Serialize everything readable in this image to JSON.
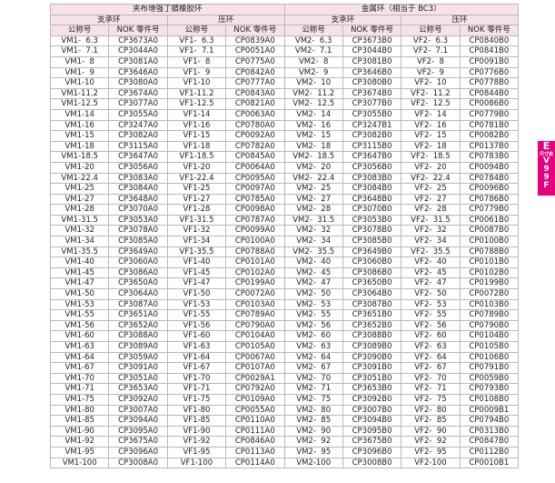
{
  "table": {
    "groups": [
      "夹布增强丁腈橡胶环",
      "金属环（相当于 BC3）"
    ],
    "subgroups": [
      "支承环",
      "压环",
      "支承环",
      "压环"
    ],
    "columns": [
      "公称号",
      "NOK 零件号",
      "公称号",
      "NOK 零件号",
      "公称号",
      "NOK 零件号",
      "公称号",
      "NOK 零件号"
    ],
    "rows": [
      [
        "VM1-  6.3",
        "CP3673A0",
        "VF1-  6.3",
        "CP0839A0",
        "VM2-  6.3",
        "CP3673B0",
        "VF2-  6.3",
        "CP0840B0"
      ],
      [
        "VM1-  7.1",
        "CP3044A0",
        "VF1-  7.1",
        "CP0051A0",
        "VM2-  7.1",
        "CP3044B0",
        "VF2-  7.1",
        "CP0841B0"
      ],
      [
        "VM1-  8",
        "CP3081A0",
        "VF1-  8",
        "CP0775A0",
        "VM2-  8",
        "CP3081B0",
        "VF2-  8",
        "CP0091B0"
      ],
      [
        "VM1-  9",
        "CP3646A0",
        "VF1-  9",
        "CP0842A0",
        "VM2-  9",
        "CP3646B0",
        "VF2-  9",
        "CP0776B0"
      ],
      [
        "VM1-10",
        "CP3080A0",
        "VF1-10",
        "CP0777A0",
        "VM2-  10",
        "CP3080B0",
        "VF2-  10",
        "CP0778B0"
      ],
      [
        "VM1-11.2",
        "CP3674A0",
        "VF1-11.2",
        "CP0843A0",
        "VM2-  11.2",
        "CP3674B0",
        "VF2-  11.2",
        "CP0844B0"
      ],
      [
        "VM1-12.5",
        "CP3077A0",
        "VF1-12.5",
        "CP0821A0",
        "VM2-  12.5",
        "CP3077B0",
        "VF2-  12.5",
        "CP0086B0"
      ],
      [
        "VM1-14",
        "CP3055A0",
        "VF1-14",
        "CP0063A0",
        "VM2-  14",
        "CP3055B0",
        "VF2-  14",
        "CP0779B0"
      ],
      [
        "VM1-16",
        "CP3247A0",
        "VF1-16",
        "CP0780A0",
        "VM2-  16",
        "CP3247B1",
        "VF2-  16",
        "CP0781B0"
      ],
      [
        "VM1-15",
        "CP3082A0",
        "VF1-15",
        "CP0092A0",
        "VM2-  15",
        "CP3082B0",
        "VF2-  15",
        "CP0082B0"
      ],
      [
        "VM1-18",
        "CP3115A0",
        "VF1-18",
        "CP0782A0",
        "VM2-  18",
        "CP3115B0",
        "VF2-  18",
        "CP0137B0"
      ],
      [
        "VM1-18.5",
        "CP3647A0",
        "VF1-18.5",
        "CP0845A0",
        "VM2-  18.5",
        "CP3647B0",
        "VF2-  18.5",
        "CP0783B0"
      ],
      [
        "VM1-20",
        "CP3056A0",
        "VF1-20",
        "CP0064A0",
        "VM2-  20",
        "CP3056B0",
        "VF2-  20",
        "CP0094B0"
      ],
      [
        "VM1-22.4",
        "CP3083A0",
        "VF1-22.4",
        "CP0095A0",
        "VM2-  22.4",
        "CP3083B0",
        "VF2-  22.4",
        "CP0784B0"
      ],
      [
        "VM1-25",
        "CP3084A0",
        "VF1-25",
        "CP0097A0",
        "VM2-  25",
        "CP3084B0",
        "VF2-  25",
        "CP0096B0"
      ],
      [
        "VM1-27",
        "CP3648A0",
        "VF1-27",
        "CP0785A0",
        "VM2-  27",
        "CP3648B0",
        "VF2-  27",
        "CP0786B0"
      ],
      [
        "VM1-28",
        "CP3070A0",
        "VF1-28",
        "CP0098A0",
        "VM2-  28",
        "CP3070B0",
        "VF2-  28",
        "CP0779B0"
      ],
      [
        "VM1-31.5",
        "CP3053A0",
        "VF1-31.5",
        "CP0787A0",
        "VM2-  31.5",
        "CP3053B0",
        "VF2-  31.5",
        "CP0061B0"
      ],
      [
        "VM1-32",
        "CP3078A0",
        "VF1-32",
        "CP0099A0",
        "VM2-  32",
        "CP3078B0",
        "VF2-  32",
        "CP0087B0"
      ],
      [
        "VM1-34",
        "CP3085A0",
        "VF1-34",
        "CP0100A0",
        "VM2-  34",
        "CP3085B0",
        "VF2-  34",
        "CP0100B0"
      ],
      [
        "VM1-35.5",
        "CP3649A0",
        "VF1-35.5",
        "CP0788A0",
        "VM2-  35.5",
        "CP3649B0",
        "VF2-  35.5",
        "CP0788B0"
      ],
      [
        "VM1-40",
        "CP3060A0",
        "VF1-40",
        "CP0101A0",
        "VM2-  40",
        "CP3060B0",
        "VF2-  40",
        "CP0101B0"
      ],
      [
        "VM1-45",
        "CP3086A0",
        "VF1-45",
        "CP0102A0",
        "VM2-  45",
        "CP3086B0",
        "VF2-  45",
        "CP0102B0"
      ],
      [
        "VM1-47",
        "CP3650A0",
        "VF1-47",
        "CP0199A0",
        "VM2-  47",
        "CP3650B0",
        "VF2-  47",
        "CP0199B0"
      ],
      [
        "VM1-50",
        "CP3064A0",
        "VF1-50",
        "CP0072A0",
        "VM2-  50",
        "CP3064B0",
        "VF2-  50",
        "CP0072B0"
      ],
      [
        "VM1-53",
        "CP3087A0",
        "VF1-53",
        "CP0103A0",
        "VM2-  53",
        "CP3087B0",
        "VF2-  53",
        "CP0103B0"
      ],
      [
        "VM1-55",
        "CP3651A0",
        "VF1-55",
        "CP0789A0",
        "VM2-  55",
        "CP3651B0",
        "VF2-  55",
        "CP0789B0"
      ],
      [
        "VM1-56",
        "CP3652A0",
        "VF1-56",
        "CP0790A0",
        "VM2-  56",
        "CP3652B0",
        "VF2-  56",
        "CP0790B0"
      ],
      [
        "VM1-60",
        "CP3088A0",
        "VF1-60",
        "CP0104A0",
        "VM2-  60",
        "CP3088B0",
        "VF2-  60",
        "CP0104B0"
      ],
      [
        "VM1-63",
        "CP3089A0",
        "VF1-63",
        "CP0105A0",
        "VM2-  63",
        "CP3089B0",
        "VF2-  63",
        "CP0105B0"
      ],
      [
        "VM1-64",
        "CP3059A0",
        "VF1-64",
        "CP0067A0",
        "VM2-  64",
        "CP3090B0",
        "VF2-  64",
        "CP0106B0"
      ],
      [
        "VM1-67",
        "CP3091A0",
        "VF1-67",
        "CP0107A0",
        "VM2-  67",
        "CP3091B0",
        "VF2-  67",
        "CP0791B0"
      ],
      [
        "VM1-70",
        "CP3051A0",
        "VF1-70",
        "CP0029A1",
        "VM2-  70",
        "CP3051B0",
        "VF2-  70",
        "CP0059B0"
      ],
      [
        "VM1-71",
        "CP3653A0",
        "VF1-71",
        "CP0792A0",
        "VM2-  71",
        "CP3653B0",
        "VF2-  71",
        "CP0793B0"
      ],
      [
        "VM1-75",
        "CP3092A0",
        "VF1-75",
        "CP0109A0",
        "VM2-  75",
        "CP3092B0",
        "VF2-  75",
        "CP0108B0"
      ],
      [
        "VM1-80",
        "CP3007A0",
        "VF1-80",
        "CP0055A0",
        "VM2-  80",
        "CP3007B0",
        "VF2-  80",
        "CP0009B1"
      ],
      [
        "VM1-85",
        "CP3094A0",
        "VF1-85",
        "CP0110A0",
        "VM2-  85",
        "CP3094B0",
        "VF2-  85",
        "CP0794B0"
      ],
      [
        "VM1-90",
        "CP3095A0",
        "VF1-90",
        "CP0111A0",
        "VM2-  90",
        "CP3095B0",
        "VF2-  90",
        "CP0313B0"
      ],
      [
        "VM1-92",
        "CP3675A0",
        "VF1-92",
        "CP0846A0",
        "VM2-  92",
        "CP3675B0",
        "VF2-  92",
        "CP0847B0"
      ],
      [
        "VM1-95",
        "CP3096A0",
        "VF1-95",
        "CP0113A0",
        "VM2-  95",
        "CP3096B0",
        "VF2-  95",
        "CP0112B0"
      ],
      [
        "VM1-100",
        "CP3008A0",
        "VF1-100",
        "CP0114A0",
        "VM2-100",
        "CP3008B0",
        "VF2-100",
        "CP0010B1"
      ]
    ]
  },
  "tab": {
    "letter": "E",
    "caption": "尺寸表",
    "code": "V99F"
  }
}
